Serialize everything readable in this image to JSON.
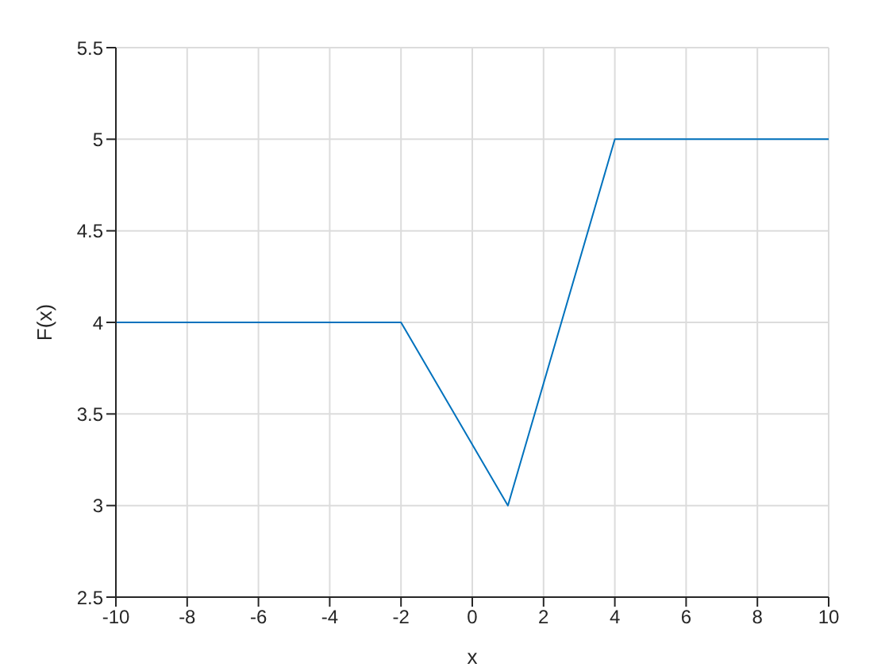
{
  "chart_data": {
    "type": "line",
    "xlabel": "x",
    "ylabel": "F(x)",
    "x": [
      -10,
      -2,
      1,
      4,
      10
    ],
    "series": [
      {
        "color": "#0072bd",
        "values": [
          4,
          4,
          3,
          5,
          5
        ]
      }
    ],
    "xlim": [
      -10,
      10
    ],
    "xticks": [
      -10,
      -8,
      -6,
      -4,
      -2,
      0,
      2,
      4,
      6,
      8,
      10
    ],
    "ylim": [
      2.5,
      5.5
    ],
    "yticks": [
      2.5,
      3,
      3.5,
      4,
      4.5,
      5,
      5.5
    ],
    "grid": true,
    "marker": "none",
    "line_style": "solid",
    "legend": false
  }
}
